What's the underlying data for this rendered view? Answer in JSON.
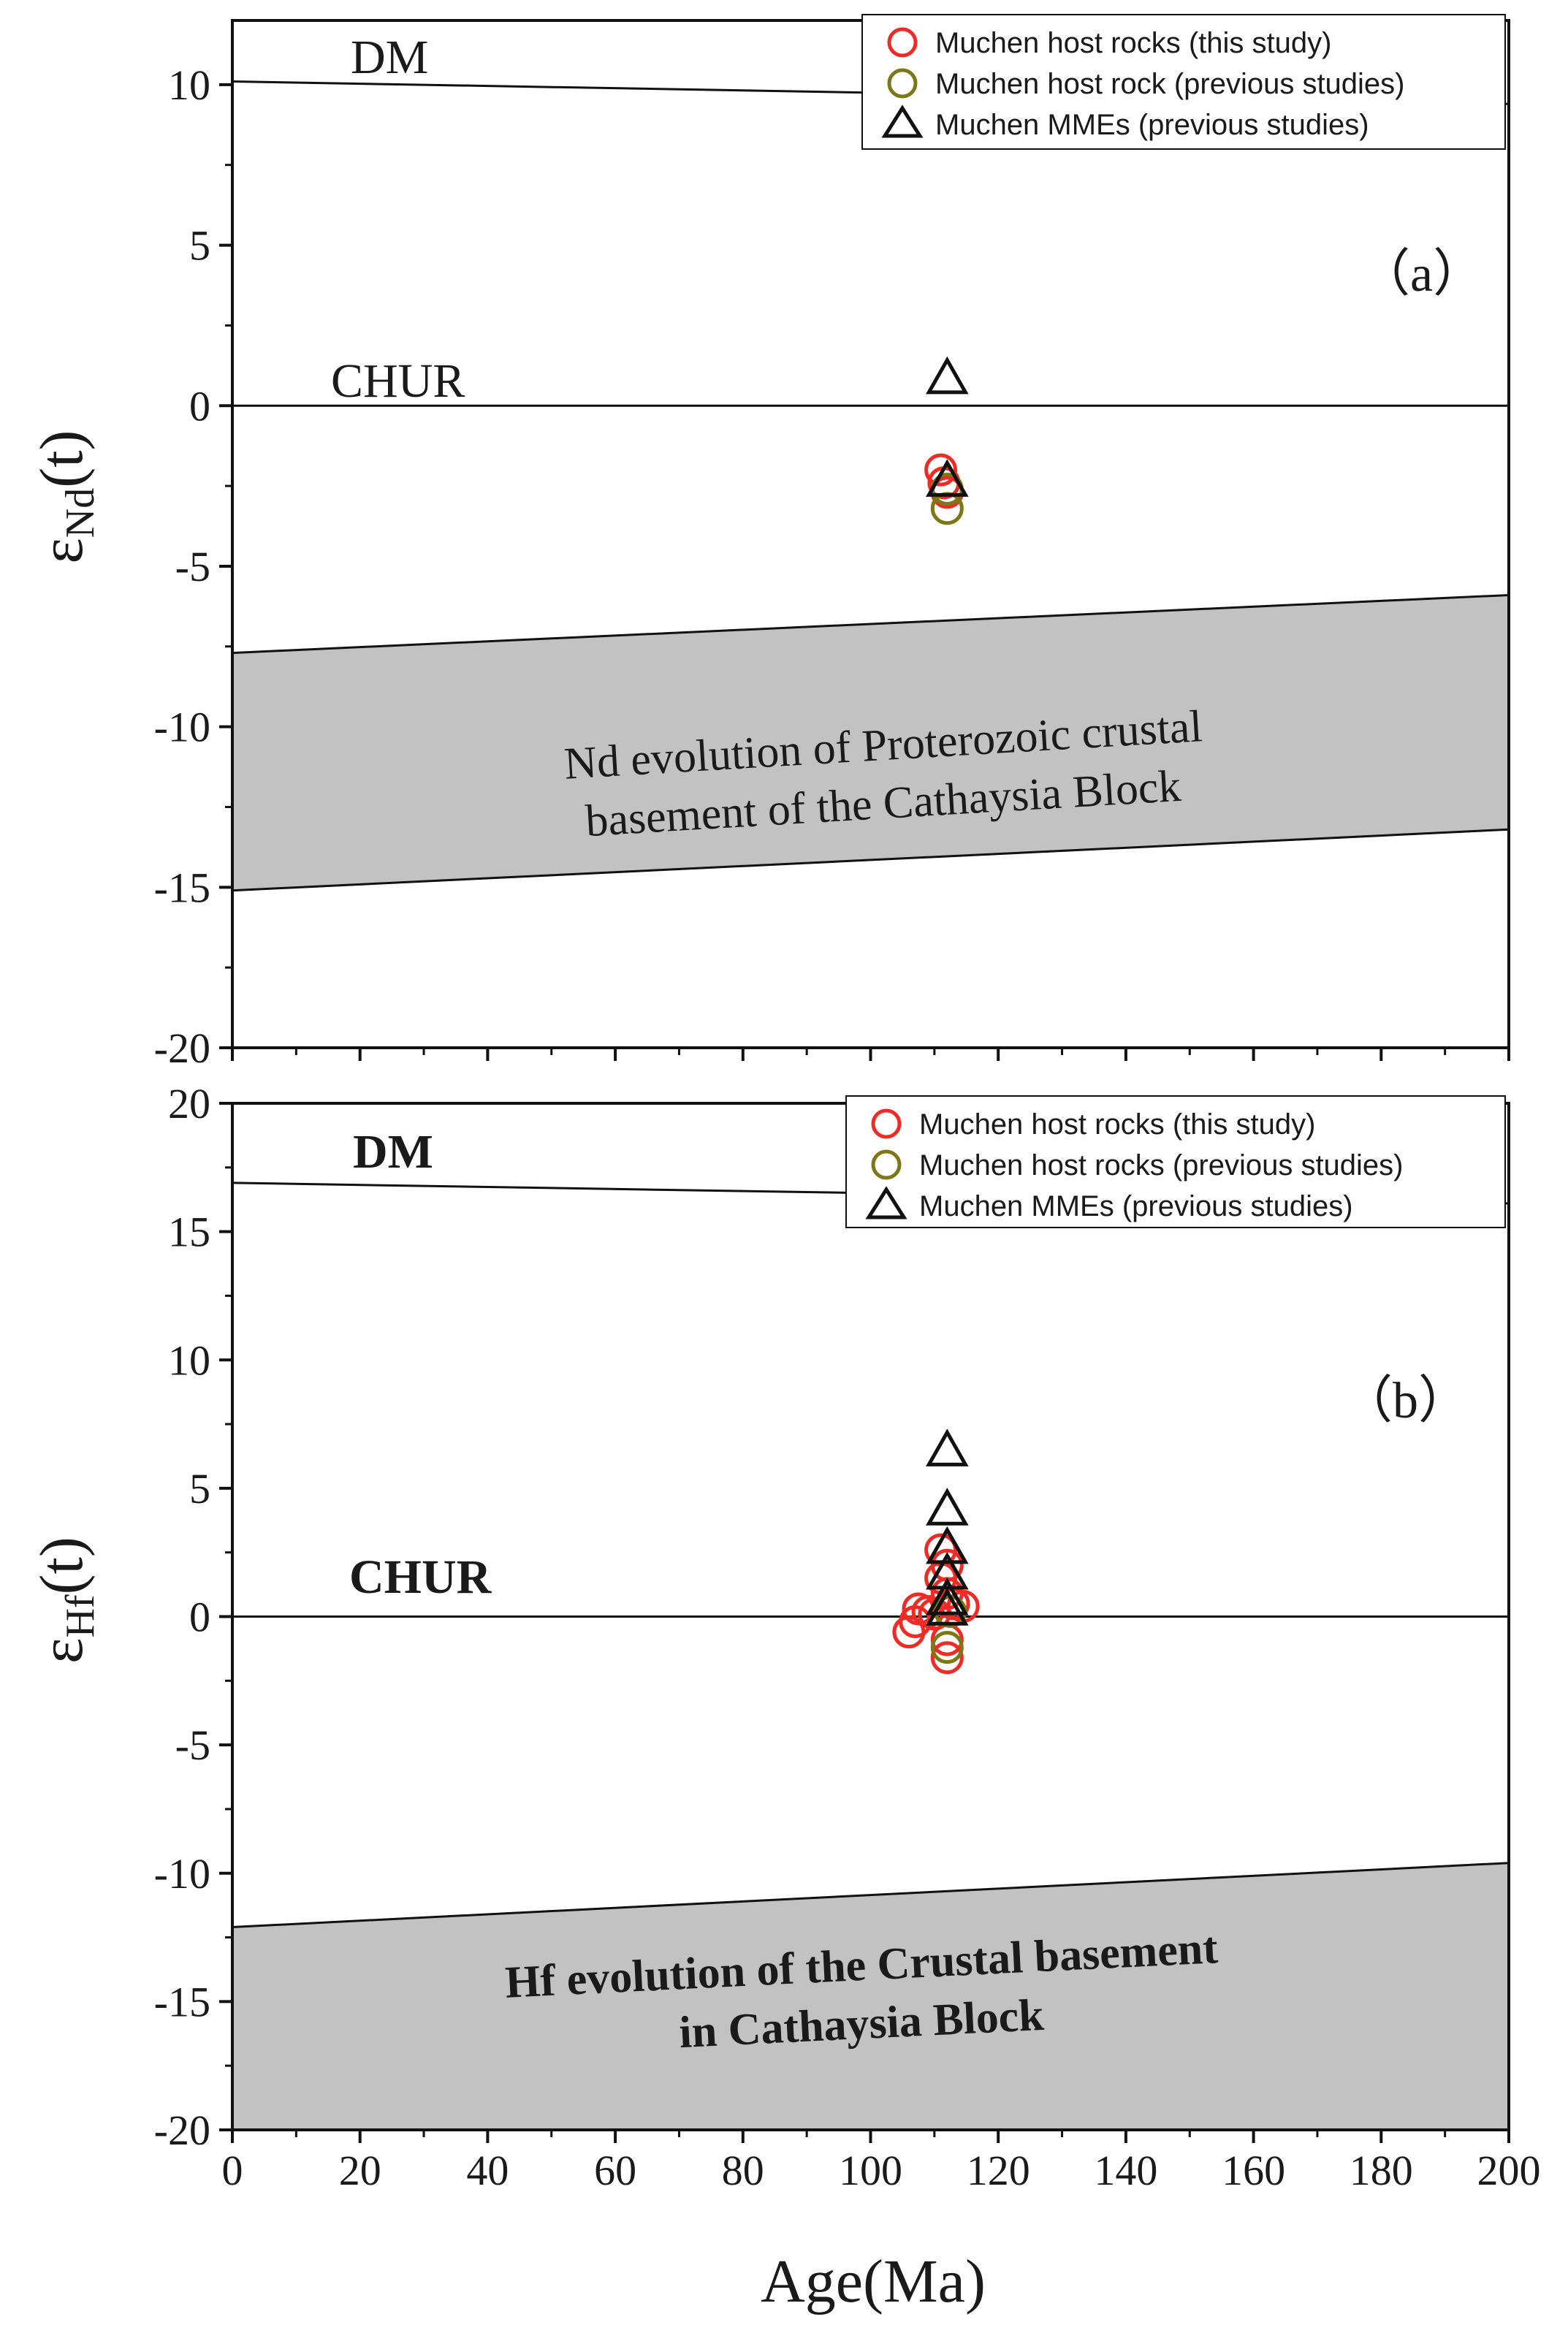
{
  "chart_data": [
    {
      "type": "scatter",
      "panel_label": "（a）",
      "ylabel_main": "ε",
      "ylabel_sub": "Nd",
      "ylabel_suffix": "(t)",
      "xlim": [
        0,
        200
      ],
      "ylim": [
        -20,
        12
      ],
      "x_ticks": [
        "0",
        "20",
        "40",
        "60",
        "80",
        "100",
        "120",
        "140",
        "160",
        "180",
        "200"
      ],
      "y_ticks": [
        "-20",
        "-15",
        "-10",
        "-5",
        "0",
        "5",
        "10"
      ],
      "grid": false,
      "legend_position": "top-right",
      "reference_lines": [
        {
          "name": "DM",
          "x": [
            0,
            200
          ],
          "y": [
            10.1,
            9.4
          ],
          "label_bold": false
        },
        {
          "name": "CHUR",
          "x": [
            0,
            200
          ],
          "y": [
            0,
            0
          ],
          "label_bold": false
        }
      ],
      "shaded_band": {
        "label_lines": [
          "Nd evolution of Proterozoic crustal",
          "basement of the Cathaysia Block"
        ],
        "upper": {
          "x": [
            0,
            200
          ],
          "y": [
            -7.7,
            -5.9
          ]
        },
        "lower": {
          "x": [
            0,
            200
          ],
          "y": [
            -15.1,
            -13.2
          ]
        },
        "color": "#c2c2c2"
      },
      "series": [
        {
          "name": "Muchen host rocks (this study)",
          "marker": "circle",
          "color": "#ee2b24",
          "points": [
            [
              111,
              -2.0
            ],
            [
              111.5,
              -2.4
            ],
            [
              112,
              -2.7
            ]
          ]
        },
        {
          "name": "Muchen host rock (previous studies)",
          "marker": "circle",
          "color": "#7d7717",
          "points": [
            [
              112,
              -3.2
            ],
            [
              112,
              -2.6
            ]
          ]
        },
        {
          "name": "Muchen MMEs (previous studies)",
          "marker": "triangle",
          "color": "#111111",
          "points": [
            [
              112,
              0.8
            ],
            [
              112,
              -2.4
            ]
          ]
        }
      ]
    },
    {
      "type": "scatter",
      "panel_label": "（b）",
      "ylabel_main": "ε",
      "ylabel_sub": "Hf",
      "ylabel_suffix": "(t)",
      "xlabel": "Age(Ma)",
      "xlim": [
        0,
        200
      ],
      "ylim": [
        -20,
        20
      ],
      "x_ticks": [
        "0",
        "20",
        "40",
        "60",
        "80",
        "100",
        "120",
        "140",
        "160",
        "180",
        "200"
      ],
      "y_ticks": [
        "-20",
        "-15",
        "-10",
        "-5",
        "0",
        "5",
        "10",
        "15",
        "20"
      ],
      "grid": false,
      "legend_position": "top-right",
      "reference_lines": [
        {
          "name": "DM",
          "x": [
            0,
            200
          ],
          "y": [
            16.9,
            16.1
          ],
          "label_bold": true
        },
        {
          "name": "CHUR",
          "x": [
            0,
            200
          ],
          "y": [
            0,
            0
          ],
          "label_bold": true
        }
      ],
      "shaded_band": {
        "label_lines": [
          "Hf evolution of the Crustal basement",
          "in Cathaysia Block"
        ],
        "upper": {
          "x": [
            0,
            200
          ],
          "y": [
            -12.1,
            -9.6
          ]
        },
        "lower": {
          "x": [
            0,
            200
          ],
          "y": [
            -20,
            -20
          ]
        },
        "color": "#c2c2c2"
      },
      "series": [
        {
          "name": "Muchen host rocks (this study)",
          "marker": "circle",
          "color": "#ee2b24",
          "points": [
            [
              106,
              -0.6
            ],
            [
              107,
              -0.2
            ],
            [
              107.5,
              0.3
            ],
            [
              109,
              0.2
            ],
            [
              110,
              0.1
            ],
            [
              111,
              1.5
            ],
            [
              111,
              2.6
            ],
            [
              112,
              2.0
            ],
            [
              112,
              0.9
            ],
            [
              113,
              0.5
            ],
            [
              114.5,
              0.4
            ],
            [
              112,
              -1.6
            ],
            [
              112,
              -0.9
            ]
          ]
        },
        {
          "name": "Muchen host rocks (previous studies)",
          "marker": "circle",
          "color": "#7d7717",
          "points": [
            [
              112,
              -1.2
            ],
            [
              112.5,
              0.2
            ]
          ]
        },
        {
          "name": "Muchen MMEs (previous studies)",
          "marker": "triangle",
          "color": "#111111",
          "points": [
            [
              112,
              6.4
            ],
            [
              112,
              4.1
            ],
            [
              112,
              2.6
            ],
            [
              112,
              1.6
            ],
            [
              112,
              0.6
            ],
            [
              112,
              0.2
            ]
          ]
        }
      ]
    }
  ]
}
